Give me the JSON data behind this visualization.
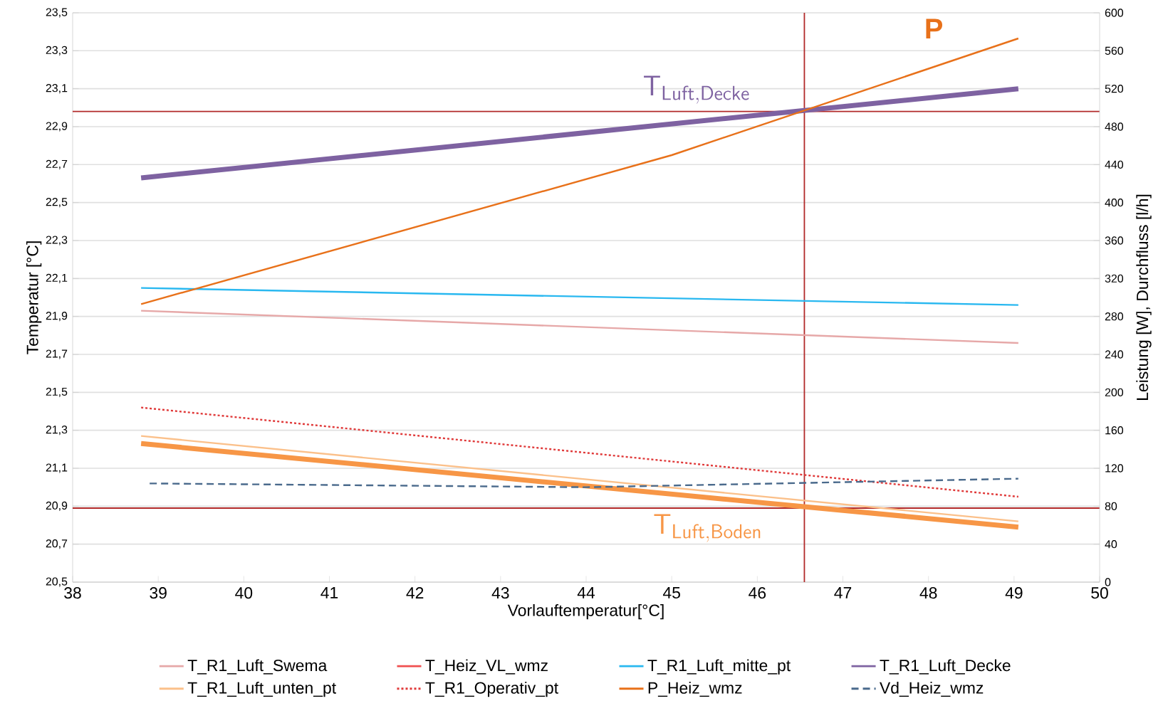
{
  "chart_data": {
    "type": "line",
    "xlabel": "Vorlauftemperatur[°C]",
    "ylabel": "Temperatur [°C]",
    "y2label": "Leistung [W], Durchfluss [l/h]",
    "xlim": [
      38,
      50
    ],
    "xticks": [
      38,
      39,
      40,
      41,
      42,
      43,
      44,
      45,
      46,
      47,
      48,
      49,
      50
    ],
    "ylim": [
      20.5,
      23.5
    ],
    "yticks": [
      {
        "value": 20.5,
        "label": "20,5"
      },
      {
        "value": 20.7,
        "label": "20,7"
      },
      {
        "value": 20.9,
        "label": "20,9"
      },
      {
        "value": 21.1,
        "label": "21,1"
      },
      {
        "value": 21.3,
        "label": "21,3"
      },
      {
        "value": 21.5,
        "label": "21,5"
      },
      {
        "value": 21.7,
        "label": "21,7"
      },
      {
        "value": 21.9,
        "label": "21,9"
      },
      {
        "value": 22.1,
        "label": "22,1"
      },
      {
        "value": 22.3,
        "label": "22,3"
      },
      {
        "value": 22.5,
        "label": "22,5"
      },
      {
        "value": 22.7,
        "label": "22,7"
      },
      {
        "value": 22.9,
        "label": "22,9"
      },
      {
        "value": 23.1,
        "label": "23,1"
      },
      {
        "value": 23.3,
        "label": "23,3"
      },
      {
        "value": 23.5,
        "label": "23,5"
      }
    ],
    "y2lim": [
      0,
      600
    ],
    "y2ticks": [
      0,
      40,
      80,
      120,
      160,
      200,
      240,
      280,
      320,
      360,
      400,
      440,
      480,
      520,
      560,
      600
    ],
    "grid": "y",
    "legend": "bottom",
    "marker": "none",
    "series": [
      {
        "name": "T_R1_Luft_Swema",
        "color": "#e6a8a8",
        "x": [
          38.8,
          49.05
        ],
        "values": [
          21.93,
          21.76
        ]
      },
      {
        "name": "T_Heiz_VL_wmz",
        "color": "#f05050"
      },
      {
        "name": "T_R1_Luft_mitte_pt",
        "color": "#29b8f0",
        "x": [
          38.8,
          49.05
        ],
        "values": [
          22.05,
          21.96
        ]
      },
      {
        "name": "T_R1_Luft_Decke",
        "color": "#7e62a1",
        "x": [
          38.8,
          49.05
        ],
        "values": [
          22.63,
          23.1
        ]
      },
      {
        "name": "T_R1_Luft_unten_pt",
        "color": "#fbc08a",
        "x": [
          38.8,
          49.05
        ],
        "values": [
          21.27,
          20.82
        ]
      },
      {
        "name": "T_R1_Operativ_pt",
        "color": "#e03a3a",
        "line_style": "dotted",
        "x": [
          38.8,
          49.05
        ],
        "values": [
          21.42,
          20.95
        ]
      },
      {
        "name": "P_Heiz_wmz",
        "color": "#e8711a",
        "axis": "y2",
        "x": [
          38.8,
          45,
          49.05
        ],
        "values": [
          293,
          450,
          573
        ]
      },
      {
        "name": "Vd_Heiz_wmz",
        "color": "#4a6a8c",
        "line_style": "dashed",
        "axis": "y2",
        "x": [
          38.9,
          44,
          49.05
        ],
        "values": [
          104,
          100,
          109
        ]
      },
      {
        "color": "#f79646",
        "x": [
          38.8,
          49.05
        ],
        "values": [
          21.23,
          20.79
        ]
      }
    ],
    "ref_lines": [
      {
        "axis": "y",
        "value": 22.98,
        "color": "#b22a2a"
      },
      {
        "axis": "y",
        "value": 20.89,
        "color": "#b22a2a"
      },
      {
        "axis": "x",
        "value": 46.55,
        "color": "#b22a2a"
      }
    ],
    "annotations": [
      "\\mathsf{T}_{\\mathsf{Luft,Decke}}",
      "\\mathsf{T}_{\\mathsf{Luft,Boden}}",
      "P"
    ]
  }
}
